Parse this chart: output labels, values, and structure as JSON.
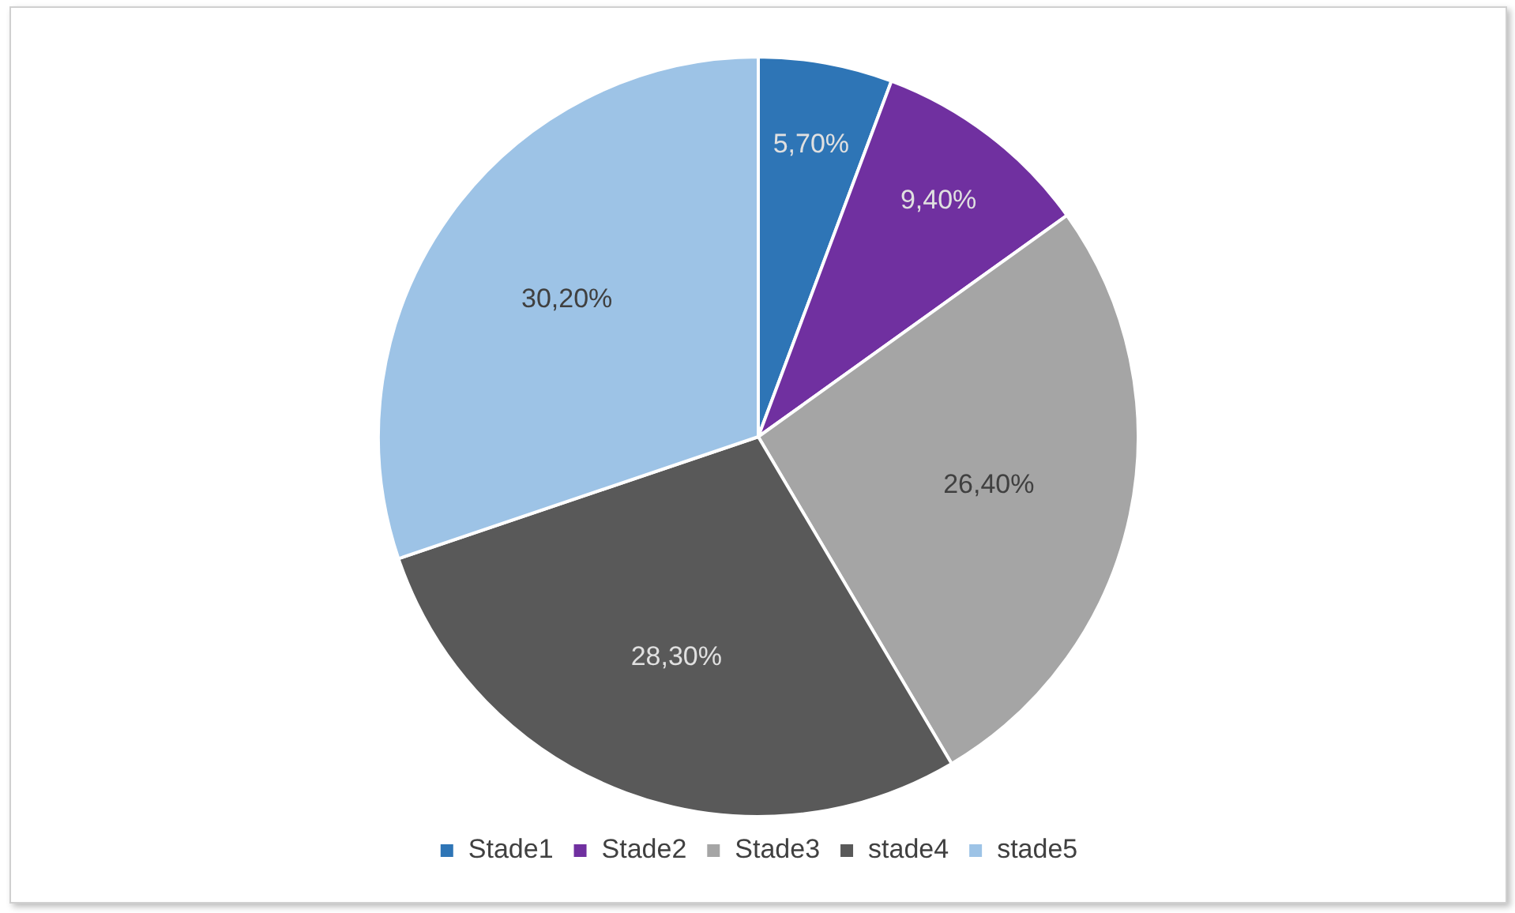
{
  "chart_data": {
    "type": "pie",
    "categories": [
      "Stade1",
      "Stade2",
      "Stade3",
      "stade4",
      "stade5"
    ],
    "values": [
      5.7,
      9.4,
      26.4,
      28.3,
      30.2
    ],
    "colors": [
      "#2e75b6",
      "#7030a0",
      "#a5a5a5",
      "#595959",
      "#9dc3e6"
    ],
    "value_labels": [
      "5,70%",
      "9,40%",
      "26,40%",
      "28,30%",
      "30,20%"
    ],
    "legend": "bottom"
  }
}
